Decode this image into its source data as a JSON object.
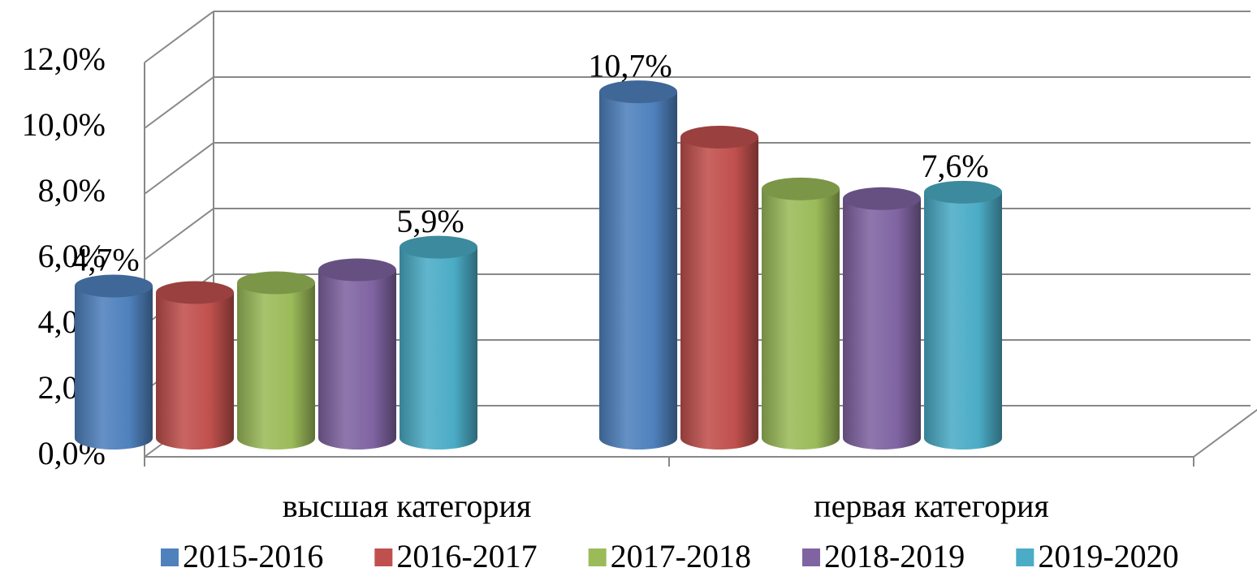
{
  "chart_data": {
    "type": "bar3d",
    "categories": [
      "высшая категория",
      "первая категория"
    ],
    "series": [
      {
        "name": "2015-2016",
        "color": "#4f81bd",
        "values": [
          4.7,
          10.7
        ],
        "value_labels": [
          "4,7%",
          "10,7%"
        ]
      },
      {
        "name": "2016-2017",
        "color": "#c0504d",
        "values": [
          4.5,
          9.3
        ],
        "value_labels": [
          null,
          null
        ]
      },
      {
        "name": "2017-2018",
        "color": "#9bbb59",
        "values": [
          4.8,
          7.7
        ],
        "value_labels": [
          null,
          null
        ]
      },
      {
        "name": "2018-2019",
        "color": "#8064a2",
        "values": [
          5.2,
          7.4
        ],
        "value_labels": [
          null,
          null
        ]
      },
      {
        "name": "2019-2020",
        "color": "#4bacc6",
        "values": [
          5.9,
          7.6
        ],
        "value_labels": [
          "5,9%",
          "7,6%"
        ]
      }
    ],
    "ylim": [
      0,
      12
    ],
    "yticks": [
      {
        "value": 0,
        "label": "0,0%"
      },
      {
        "value": 2,
        "label": "2,0%"
      },
      {
        "value": 4,
        "label": "4,0%"
      },
      {
        "value": 6,
        "label": "6,0%"
      },
      {
        "value": 8,
        "label": "8,0%"
      },
      {
        "value": 10,
        "label": "10,0%"
      },
      {
        "value": 12,
        "label": "12,0%"
      }
    ],
    "grid": true,
    "legend": "bottom"
  }
}
